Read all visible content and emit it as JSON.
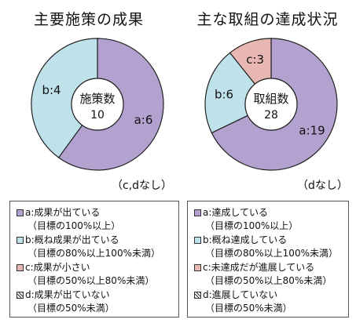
{
  "chart_data": [
    {
      "type": "pie",
      "title": "主要施策の成果",
      "center_label": "施策数",
      "center_value": "10",
      "note": "（c,dなし）",
      "slices": [
        {
          "key": "a",
          "label": "a:6",
          "value": 6,
          "color": "#b3a2cf"
        },
        {
          "key": "b",
          "label": "b:4",
          "value": 4,
          "color": "#bfe1ea"
        }
      ],
      "legend": [
        {
          "line1": "a:成果が出ている",
          "line2": "（目標の100%以上）",
          "color": "#b3a2cf"
        },
        {
          "line1": "b:概ね成果が出ている",
          "line2": "（目標の80%以上100%未満）",
          "color": "#bfe1ea"
        },
        {
          "line1": "c:成果が小さい",
          "line2": "（目標の50%以上80%未満）",
          "color": "#e8b7b4"
        },
        {
          "line1": "d:成果が出ていない",
          "line2": "（目標の50%未満）",
          "color": "hatch"
        }
      ]
    },
    {
      "type": "pie",
      "title": "主な取組の達成状況",
      "center_label": "取組数",
      "center_value": "28",
      "note": "（dなし）",
      "slices": [
        {
          "key": "a",
          "label": "a:19",
          "value": 19,
          "color": "#b3a2cf"
        },
        {
          "key": "b",
          "label": "b:6",
          "value": 6,
          "color": "#bfe1ea"
        },
        {
          "key": "c",
          "label": "c:3",
          "value": 3,
          "color": "#e8b7b4"
        }
      ],
      "legend": [
        {
          "line1": "a:達成している",
          "line2": "（目標の100%以上）",
          "color": "#b3a2cf"
        },
        {
          "line1": "b:概ね達成している",
          "line2": "（目標の80%以上100%未満）",
          "color": "#bfe1ea"
        },
        {
          "line1": "c:未達成だが進展している",
          "line2": "（目標の50%以上80%未満）",
          "color": "#e8b7b4"
        },
        {
          "line1": "d:進展していない",
          "line2": "（目標の50%未満）",
          "color": "hatch"
        }
      ]
    }
  ]
}
